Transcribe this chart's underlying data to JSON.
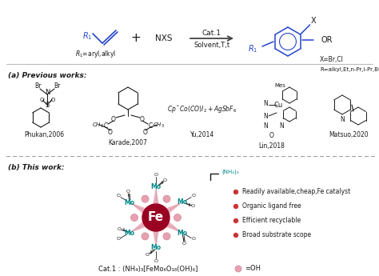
{
  "section_a": "(a) Previous works:",
  "section_b": "(b) This work:",
  "refs": [
    "Phukan,2006",
    "Karade,2007",
    "Yu,2014",
    "Lin,2018",
    "Matsuo,2020"
  ],
  "bullets": [
    "Readily available,cheap,Fe catalyst",
    "Organic ligand free",
    "Efficient recyclable",
    "Broad substrate scope"
  ],
  "cat1_formula": "Cat.1 : (NH₄)₃[FeMo₆O₁₈(OH)₆]",
  "nh4_label": "(NH₄)₃",
  "fe_label": "Fe",
  "mo_label": "Mo",
  "bg_color": "#ffffff",
  "text_color": "#1a1a1a",
  "blue_color": "#2244cc",
  "teal_color": "#008888",
  "fe_color": "#990022",
  "pink_color": "#e8a0b0",
  "bullet_color": "#cc3333",
  "dashed_color": "#999999",
  "line_color": "#cccccc",
  "arrow_color": "#444444"
}
